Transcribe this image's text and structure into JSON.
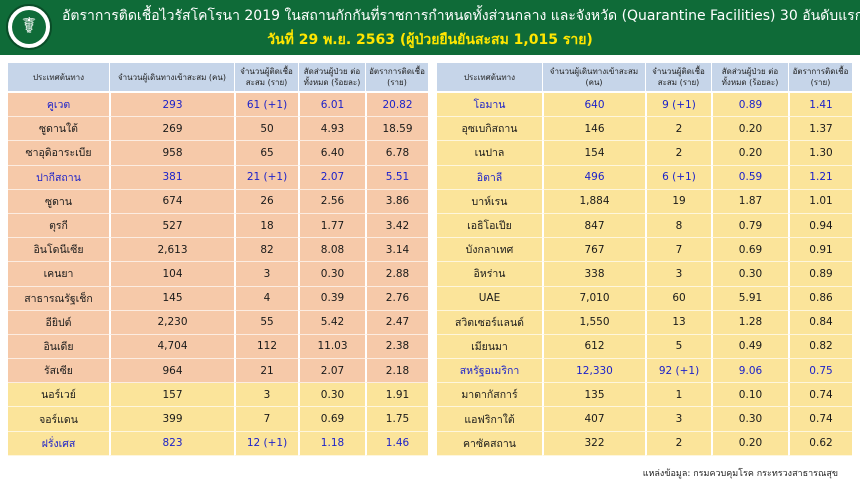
{
  "header": {
    "title": "อัตราการติดเชื้อไวรัสโคโรนา 2019 ในสถานกักกันที่ราชการกำหนดทั้งส่วนกลาง และจังหวัด (Quarantine Facilities) 30 อันดับแรก",
    "subtitle": "วันที่ 29 พ.ย. 2563  (ผู้ป่วยยืนยันสะสม 1,015 ราย)",
    "colors": {
      "header_bg": "#0f6b38",
      "subtitle": "#ffe600",
      "highlight_text": "#1d22c9",
      "row_orange": "#f6c9a9",
      "row_yellow": "#fbe49a",
      "header_row": "#c6d5e9"
    }
  },
  "columns": {
    "country": "ประเทศต้นทาง",
    "travelers": "จำนวนผู้เดินทางเข้าสะสม (คน)",
    "infected": "จำนวนผู้ติดเชื้อ สะสม (ราย)",
    "ratio": "สัดส่วนผู้ป่วย ต่อทั้งหมด (ร้อยละ)",
    "rate": "อัตราการติดเชื้อ (ราย)"
  },
  "left_table": [
    {
      "country": "คูเวต",
      "travelers": "293",
      "infected": "61 (+1)",
      "ratio": "6.01",
      "rate": "20.82",
      "highlight": true,
      "shade": "orange"
    },
    {
      "country": "ซูดานใต้",
      "travelers": "269",
      "infected": "50",
      "ratio": "4.93",
      "rate": "18.59",
      "highlight": false,
      "shade": "orange"
    },
    {
      "country": "ซาอุดิอาระเบีย",
      "travelers": "958",
      "infected": "65",
      "ratio": "6.40",
      "rate": "6.78",
      "highlight": false,
      "shade": "orange"
    },
    {
      "country": "ปากีสถาน",
      "travelers": "381",
      "infected": "21 (+1)",
      "ratio": "2.07",
      "rate": "5.51",
      "highlight": true,
      "shade": "orange"
    },
    {
      "country": "ซูดาน",
      "travelers": "674",
      "infected": "26",
      "ratio": "2.56",
      "rate": "3.86",
      "highlight": false,
      "shade": "orange"
    },
    {
      "country": "ตุรกี",
      "travelers": "527",
      "infected": "18",
      "ratio": "1.77",
      "rate": "3.42",
      "highlight": false,
      "shade": "orange"
    },
    {
      "country": "อินโดนีเซีย",
      "travelers": "2,613",
      "infected": "82",
      "ratio": "8.08",
      "rate": "3.14",
      "highlight": false,
      "shade": "orange"
    },
    {
      "country": "เคนยา",
      "travelers": "104",
      "infected": "3",
      "ratio": "0.30",
      "rate": "2.88",
      "highlight": false,
      "shade": "orange"
    },
    {
      "country": "สาธารณรัฐเช็ก",
      "travelers": "145",
      "infected": "4",
      "ratio": "0.39",
      "rate": "2.76",
      "highlight": false,
      "shade": "orange"
    },
    {
      "country": "อียิปต์",
      "travelers": "2,230",
      "infected": "55",
      "ratio": "5.42",
      "rate": "2.47",
      "highlight": false,
      "shade": "orange"
    },
    {
      "country": "อินเดีย",
      "travelers": "4,704",
      "infected": "112",
      "ratio": "11.03",
      "rate": "2.38",
      "highlight": false,
      "shade": "orange"
    },
    {
      "country": "รัสเซีย",
      "travelers": "964",
      "infected": "21",
      "ratio": "2.07",
      "rate": "2.18",
      "highlight": false,
      "shade": "orange"
    },
    {
      "country": "นอร์เวย์",
      "travelers": "157",
      "infected": "3",
      "ratio": "0.30",
      "rate": "1.91",
      "highlight": false,
      "shade": "yellow"
    },
    {
      "country": "จอร์แดน",
      "travelers": "399",
      "infected": "7",
      "ratio": "0.69",
      "rate": "1.75",
      "highlight": false,
      "shade": "yellow"
    },
    {
      "country": "ฝรั่งเศส",
      "travelers": "823",
      "infected": "12 (+1)",
      "ratio": "1.18",
      "rate": "1.46",
      "highlight": true,
      "shade": "yellow"
    }
  ],
  "right_table": [
    {
      "country": "โอมาน",
      "travelers": "640",
      "infected": "9 (+1)",
      "ratio": "0.89",
      "rate": "1.41",
      "highlight": true
    },
    {
      "country": "อุซเบกิสถาน",
      "travelers": "146",
      "infected": "2",
      "ratio": "0.20",
      "rate": "1.37",
      "highlight": false
    },
    {
      "country": "เนปาล",
      "travelers": "154",
      "infected": "2",
      "ratio": "0.20",
      "rate": "1.30",
      "highlight": false
    },
    {
      "country": "อิตาลี",
      "travelers": "496",
      "infected": "6 (+1)",
      "ratio": "0.59",
      "rate": "1.21",
      "highlight": true
    },
    {
      "country": "บาห์เรน",
      "travelers": "1,884",
      "infected": "19",
      "ratio": "1.87",
      "rate": "1.01",
      "highlight": false
    },
    {
      "country": "เอธิโอเปีย",
      "travelers": "847",
      "infected": "8",
      "ratio": "0.79",
      "rate": "0.94",
      "highlight": false
    },
    {
      "country": "บังกลาเทศ",
      "travelers": "767",
      "infected": "7",
      "ratio": "0.69",
      "rate": "0.91",
      "highlight": false
    },
    {
      "country": "อิหร่าน",
      "travelers": "338",
      "infected": "3",
      "ratio": "0.30",
      "rate": "0.89",
      "highlight": false
    },
    {
      "country": "UAE",
      "travelers": "7,010",
      "infected": "60",
      "ratio": "5.91",
      "rate": "0.86",
      "highlight": false
    },
    {
      "country": "สวิตเซอร์แลนด์",
      "travelers": "1,550",
      "infected": "13",
      "ratio": "1.28",
      "rate": "0.84",
      "highlight": false
    },
    {
      "country": "เมียนมา",
      "travelers": "612",
      "infected": "5",
      "ratio": "0.49",
      "rate": "0.82",
      "highlight": false
    },
    {
      "country": "สหรัฐอเมริกา",
      "travelers": "12,330",
      "infected": "92 (+1)",
      "ratio": "9.06",
      "rate": "0.75",
      "highlight": true
    },
    {
      "country": "มาดากัสการ์",
      "travelers": "135",
      "infected": "1",
      "ratio": "0.10",
      "rate": "0.74",
      "highlight": false
    },
    {
      "country": "แอฟริกาใต้",
      "travelers": "407",
      "infected": "3",
      "ratio": "0.30",
      "rate": "0.74",
      "highlight": false
    },
    {
      "country": "คาซัคสถาน",
      "travelers": "322",
      "infected": "2",
      "ratio": "0.20",
      "rate": "0.62",
      "highlight": false
    }
  ],
  "source": "แหล่งข้อมูล: กรมควบคุมโรค กระทรวงสาธารณสุข"
}
